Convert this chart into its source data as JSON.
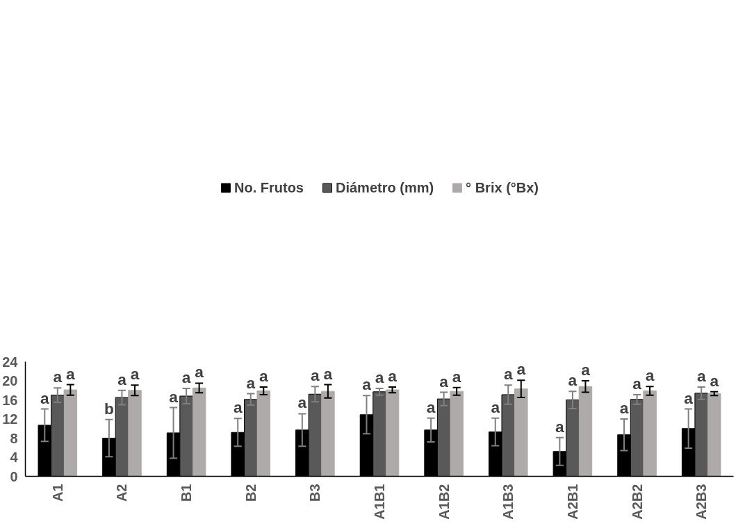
{
  "chart_data": {
    "type": "bar",
    "categories": [
      "A1",
      "A2",
      "B1",
      "B2",
      "B3",
      "A1B1",
      "A1B2",
      "A1B3",
      "A2B1",
      "A2B2",
      "A2B3"
    ],
    "series": [
      {
        "name": "No. Frutos",
        "color": "#000000",
        "values": [
          10.7,
          8.0,
          9.1,
          9.2,
          9.7,
          12.9,
          9.7,
          9.3,
          5.2,
          8.7,
          10.0
        ],
        "errors": [
          3.4,
          3.9,
          5.3,
          2.9,
          3.4,
          4.0,
          2.5,
          2.9,
          2.9,
          3.3,
          4.1
        ]
      },
      {
        "name": "Diámetro (mm)",
        "color": "#595959",
        "values": [
          17.0,
          16.5,
          16.8,
          16.1,
          17.2,
          17.7,
          16.2,
          17.1,
          16.0,
          16.1,
          17.4
        ],
        "errors": [
          1.5,
          1.5,
          1.6,
          1.2,
          1.6,
          0.7,
          1.4,
          2.0,
          1.8,
          1.0,
          1.3
        ]
      },
      {
        "name": "° Brix (°Bx)",
        "color": "#aeaaaa",
        "values": [
          18.1,
          18.0,
          18.5,
          17.9,
          17.8,
          18.1,
          17.8,
          18.3,
          18.8,
          17.9,
          17.3
        ],
        "errors": [
          1.1,
          1.1,
          1.0,
          0.8,
          1.4,
          0.6,
          0.8,
          1.8,
          1.2,
          0.9,
          0.4
        ]
      }
    ],
    "ylim": [
      0,
      24
    ],
    "yticks": [
      0,
      4,
      8,
      12,
      16,
      20,
      24
    ],
    "grid": false,
    "legend": "top",
    "annotations": [
      "a",
      "a",
      "a",
      "b",
      "a",
      "a",
      "a",
      "a",
      "a",
      "a",
      "a",
      "a",
      "a",
      "a",
      "a",
      "a",
      "a",
      "a",
      "a",
      "a",
      "a",
      "a",
      "a",
      "a",
      "a",
      "a",
      "a",
      "a",
      "a",
      "a",
      "a",
      "a",
      "a"
    ]
  }
}
